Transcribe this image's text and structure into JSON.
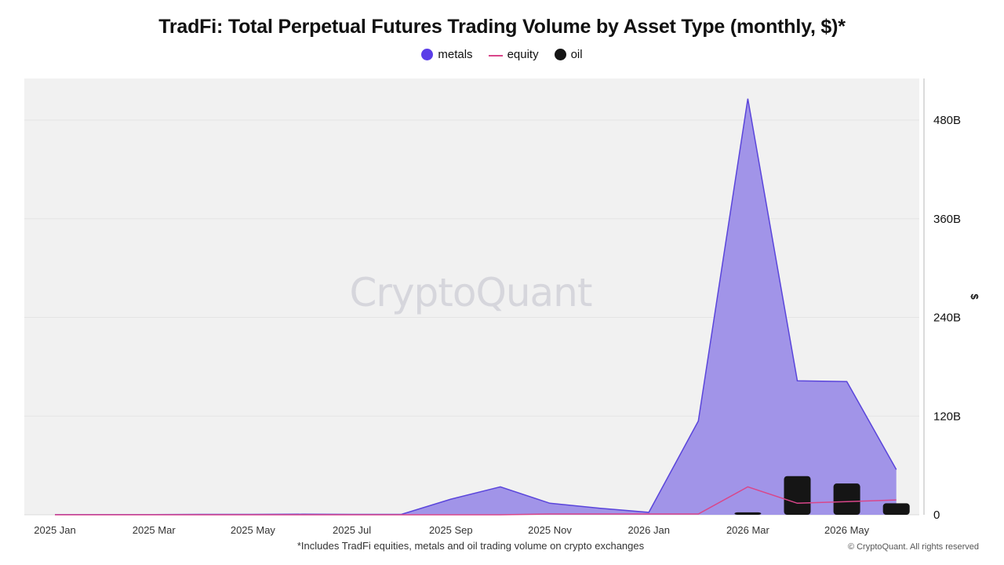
{
  "title": "TradFi: Total Perpetual Futures Trading Volume by Asset Type (monthly, $)*",
  "footnote": "*Includes TradFi equities, metals and oil trading volume on crypto exchanges",
  "copyright": "© CryptoQuant. All rights reserved",
  "watermark": "CryptoQuant",
  "y_unit": "$",
  "colors": {
    "metals_fill": "#a194e8",
    "metals_line": "#5a45db",
    "metals_legend": "#5b3ee8",
    "equity": "#d9468a",
    "oil": "#151515",
    "plot_bg": "#f1f1f1",
    "grid": "#e4e4e4"
  },
  "legend": [
    {
      "name": "metals",
      "marker": "dot",
      "color": "#5b3ee8"
    },
    {
      "name": "equity",
      "marker": "line",
      "color": "#d9468a"
    },
    {
      "name": "oil",
      "marker": "dot",
      "color": "#151515"
    }
  ],
  "chart_data": {
    "type": "area",
    "title": "TradFi: Total Perpetual Futures Trading Volume by Asset Type (monthly, $)*",
    "ylabel": "$",
    "xlabel": "",
    "ylim": [
      0,
      525
    ],
    "y_unit": "billions of $",
    "y_ticks": [
      {
        "value": 0,
        "label": "0"
      },
      {
        "value": 120,
        "label": "120B"
      },
      {
        "value": 240,
        "label": "240B"
      },
      {
        "value": 360,
        "label": "360B"
      },
      {
        "value": 480,
        "label": "480B"
      }
    ],
    "x_tick_labels": [
      {
        "month": "2025-01",
        "label": "2025 Jan"
      },
      {
        "month": "2025-03",
        "label": "2025 Mar"
      },
      {
        "month": "2025-05",
        "label": "2025 May"
      },
      {
        "month": "2025-07",
        "label": "2025 Jul"
      },
      {
        "month": "2025-09",
        "label": "2025 Sep"
      },
      {
        "month": "2025-11",
        "label": "2025 Nov"
      },
      {
        "month": "2026-01",
        "label": "2026 Jan"
      },
      {
        "month": "2026-03",
        "label": "2026 Mar"
      },
      {
        "month": "2026-05",
        "label": "2026 May"
      }
    ],
    "x": [
      "2025-01",
      "2025-02",
      "2025-03",
      "2025-04",
      "2025-05",
      "2025-06",
      "2025-07",
      "2025-08",
      "2025-09",
      "2025-10",
      "2025-11",
      "2025-12",
      "2026-01",
      "2026-02",
      "2026-03",
      "2026-04",
      "2026-05",
      "2026-06"
    ],
    "grid": true,
    "legend_position": "top-center",
    "series": [
      {
        "name": "metals",
        "type": "area",
        "values": [
          0.3,
          0.3,
          0.3,
          0.5,
          0.5,
          0.7,
          0.5,
          0.5,
          19,
          34,
          14,
          8,
          3,
          114,
          506,
          163,
          162,
          55
        ]
      },
      {
        "name": "equity",
        "type": "line",
        "values": [
          0,
          0,
          0,
          0,
          0,
          0,
          0,
          0,
          0,
          0,
          1,
          1,
          1,
          1,
          34,
          14,
          16,
          18
        ]
      },
      {
        "name": "oil",
        "type": "bar",
        "values": [
          0,
          0,
          0,
          0,
          0,
          0,
          0,
          0,
          0,
          0,
          0,
          0,
          0,
          0,
          3,
          47,
          38,
          14
        ]
      }
    ]
  }
}
